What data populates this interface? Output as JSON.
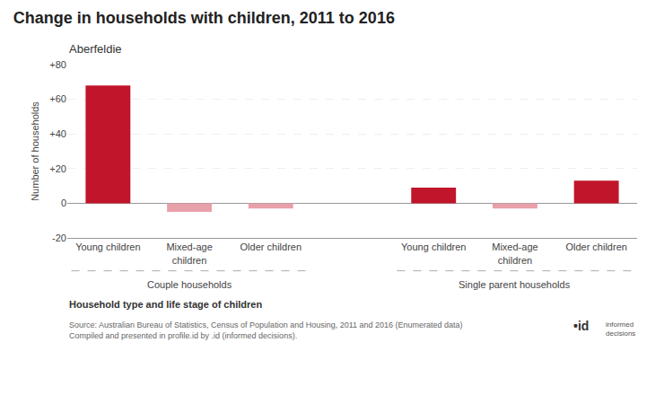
{
  "chart_data": {
    "type": "bar",
    "title": "Change in households with children, 2011 to 2016",
    "subtitle": "Aberfeldie",
    "ylabel": "Number of households",
    "xlabel": "Household type and life stage of children",
    "categories": [
      "Young children",
      "Mixed-age\nchildren",
      "Older children",
      "Young children",
      "Mixed-age\nchildren",
      "Older children"
    ],
    "groups": [
      "Couple households",
      "Couple households",
      "Couple households",
      "Single parent households",
      "Single parent households",
      "Single parent households"
    ],
    "values": [
      68,
      -5,
      -3,
      9,
      -3,
      13
    ],
    "colors": [
      "#c0152a",
      "#e8a0aa",
      "#e8a0aa",
      "#c0152a",
      "#e8a0aa",
      "#c0152a"
    ],
    "ylim": [
      -20,
      80
    ],
    "yticks": [
      {
        "value": -20,
        "label": "-20"
      },
      0,
      {
        "value": 20,
        "label": "+20"
      },
      {
        "value": 40,
        "label": "+40"
      },
      {
        "value": 60,
        "label": "+60"
      },
      {
        "value": 80,
        "label": "+80"
      }
    ],
    "grid": true,
    "annotations": [
      "Source: Australian Bureau of Statistics, Census of Population and Housing, 2011 and 2016 (Enumerated data)\nCompiled and presented in profile.id by .id (informed decisions).",
      "•id",
      "informed\ndecisions"
    ]
  }
}
